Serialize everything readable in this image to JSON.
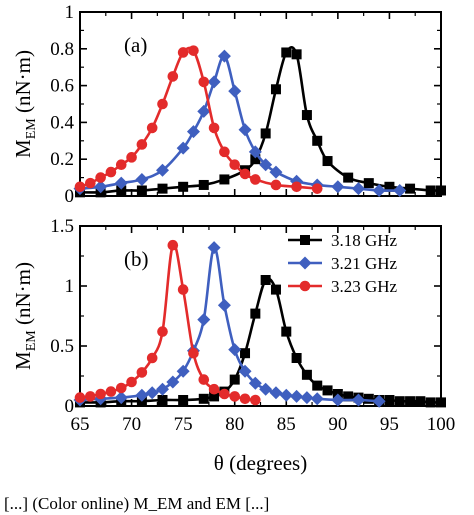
{
  "chart_data": [
    {
      "type": "line",
      "panel_label": "(a)",
      "ylabel_main": "M",
      "ylabel_sub": "EM",
      "ylabel_unit": " (nN·m)",
      "xlim": [
        65,
        100
      ],
      "ylim": [
        0,
        1
      ],
      "yticks": [
        "0",
        "0.2",
        "0.4",
        "0.6",
        "0.8",
        "1"
      ],
      "ytick_values": [
        0,
        0.2,
        0.4,
        0.6,
        0.8,
        1
      ],
      "series": [
        {
          "name": "3.18 GHz",
          "color": "#000000",
          "marker": "square",
          "x": [
            65,
            67,
            69,
            71,
            73,
            75,
            77,
            79,
            81,
            82,
            83,
            84,
            85,
            86,
            87,
            88,
            89,
            91,
            93,
            95,
            97,
            99,
            100
          ],
          "y": [
            0.02,
            0.02,
            0.03,
            0.03,
            0.04,
            0.05,
            0.06,
            0.09,
            0.14,
            0.2,
            0.34,
            0.58,
            0.78,
            0.77,
            0.44,
            0.3,
            0.19,
            0.1,
            0.07,
            0.05,
            0.04,
            0.03,
            0.03
          ]
        },
        {
          "name": "3.21 GHz",
          "color": "#3f5fbf",
          "marker": "diamond",
          "x": [
            65,
            67,
            69,
            71,
            73,
            75,
            76,
            77,
            78,
            79,
            80,
            81,
            82,
            83,
            84,
            86,
            88,
            90,
            92,
            94,
            96
          ],
          "y": [
            0.04,
            0.05,
            0.07,
            0.09,
            0.14,
            0.26,
            0.35,
            0.46,
            0.62,
            0.76,
            0.57,
            0.36,
            0.24,
            0.17,
            0.13,
            0.08,
            0.06,
            0.05,
            0.04,
            0.03,
            0.03
          ]
        },
        {
          "name": "3.23 GHz",
          "color": "#e32b2b",
          "marker": "circle",
          "x": [
            65,
            66,
            67,
            68,
            69,
            70,
            71,
            72,
            73,
            74,
            75,
            76,
            77,
            78,
            79,
            80,
            81,
            82,
            84,
            86,
            88
          ],
          "y": [
            0.05,
            0.07,
            0.1,
            0.13,
            0.17,
            0.21,
            0.28,
            0.37,
            0.5,
            0.65,
            0.78,
            0.79,
            0.62,
            0.37,
            0.24,
            0.17,
            0.12,
            0.09,
            0.06,
            0.05,
            0.04
          ]
        }
      ]
    },
    {
      "type": "line",
      "panel_label": "(b)",
      "ylabel_main": "M",
      "ylabel_sub": "EM",
      "ylabel_unit": " (nN·m)",
      "xlabel": "θ (degrees)",
      "xlim": [
        65,
        100
      ],
      "ylim": [
        0,
        1.5
      ],
      "xticks": [
        "65",
        "70",
        "75",
        "80",
        "85",
        "90",
        "95",
        "100"
      ],
      "xtick_values": [
        65,
        70,
        75,
        80,
        85,
        90,
        95,
        100
      ],
      "yticks": [
        "0",
        "0.5",
        "1",
        "1.5"
      ],
      "ytick_values": [
        0,
        0.5,
        1,
        1.5
      ],
      "legend": "top-right",
      "series": [
        {
          "name": "3.18 GHz",
          "color": "#000000",
          "marker": "square",
          "x": [
            65,
            67,
            69,
            71,
            73,
            75,
            77,
            78,
            79,
            80,
            81,
            82,
            83,
            84,
            85,
            86,
            87,
            88,
            89,
            90,
            91,
            92,
            93,
            94,
            95,
            96,
            97,
            98,
            99,
            100
          ],
          "y": [
            0.03,
            0.03,
            0.04,
            0.04,
            0.05,
            0.05,
            0.06,
            0.08,
            0.12,
            0.22,
            0.44,
            0.77,
            1.05,
            0.97,
            0.62,
            0.4,
            0.26,
            0.17,
            0.13,
            0.1,
            0.08,
            0.07,
            0.06,
            0.05,
            0.05,
            0.04,
            0.04,
            0.04,
            0.03,
            0.03
          ]
        },
        {
          "name": "3.21 GHz",
          "color": "#3f5fbf",
          "marker": "diamond",
          "x": [
            65,
            67,
            69,
            71,
            72,
            73,
            74,
            75,
            76,
            77,
            78,
            79,
            80,
            81,
            82,
            83,
            84,
            85,
            86,
            87,
            88,
            90,
            92,
            94
          ],
          "y": [
            0.05,
            0.06,
            0.07,
            0.09,
            0.11,
            0.14,
            0.2,
            0.29,
            0.46,
            0.72,
            1.32,
            0.84,
            0.47,
            0.29,
            0.19,
            0.14,
            0.11,
            0.09,
            0.08,
            0.07,
            0.06,
            0.05,
            0.05,
            0.04
          ]
        },
        {
          "name": "3.23 GHz",
          "color": "#e32b2b",
          "marker": "circle",
          "x": [
            65,
            66,
            67,
            68,
            69,
            70,
            71,
            72,
            73,
            74,
            75,
            76,
            77,
            78,
            79,
            80,
            81,
            82
          ],
          "y": [
            0.07,
            0.08,
            0.1,
            0.12,
            0.15,
            0.2,
            0.28,
            0.4,
            0.62,
            1.34,
            0.97,
            0.44,
            0.22,
            0.14,
            0.1,
            0.08,
            0.06,
            0.05
          ]
        }
      ]
    }
  ],
  "caption": "[...] (Color online) M_EM and EM [...]"
}
